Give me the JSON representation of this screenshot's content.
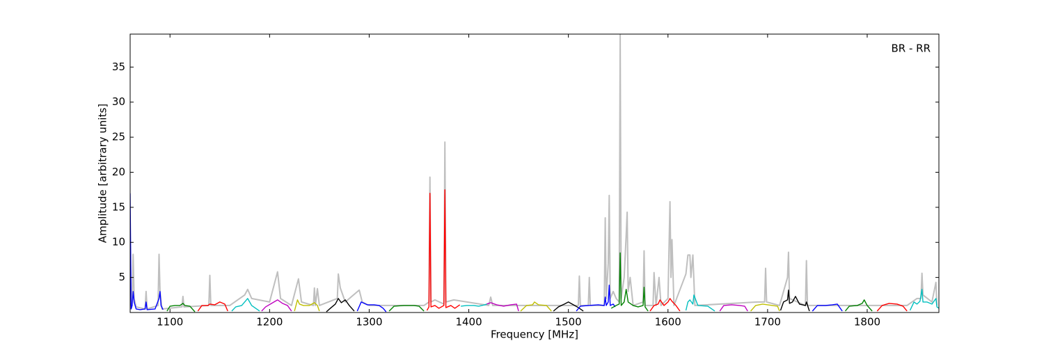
{
  "chart_data": {
    "type": "line",
    "annotation": "BR - RR",
    "xlabel": "Frequency [MHz]",
    "ylabel": "Amplitude [arbitrary units]",
    "xlim": [
      1060,
      1872
    ],
    "ylim": [
      0,
      39.7
    ],
    "xticks": [
      1100,
      1200,
      1300,
      1400,
      1500,
      1600,
      1700,
      1800
    ],
    "yticks": [
      5,
      10,
      15,
      20,
      25,
      30,
      35
    ],
    "series": [
      {
        "color": "#bfbfbf",
        "x": [
          1060,
          1062,
          1063,
          1064,
          1066,
          1075,
          1076,
          1077,
          1088,
          1089,
          1090,
          1092,
          1112,
          1113,
          1114,
          1139,
          1140,
          1141,
          1160,
          1175,
          1178,
          1182,
          1200,
          1208,
          1211,
          1222,
          1229,
          1232,
          1244,
          1245,
          1246,
          1248,
          1250,
          1268,
          1269,
          1271,
          1276,
          1290,
          1293,
          1300,
          1355,
          1360,
          1361,
          1362,
          1366,
          1375,
          1376,
          1377,
          1385,
          1420,
          1422,
          1424,
          1505,
          1510,
          1511,
          1512,
          1520,
          1521,
          1522,
          1536,
          1537,
          1538,
          1540,
          1541,
          1542,
          1545,
          1548,
          1551,
          1552,
          1553,
          1556,
          1558,
          1559,
          1560,
          1562,
          1565,
          1575,
          1576,
          1577,
          1585,
          1586,
          1588,
          1591,
          1593,
          1600,
          1601,
          1602,
          1603,
          1604,
          1606,
          1618,
          1620,
          1622,
          1623,
          1625,
          1627,
          1690,
          1697,
          1698,
          1699,
          1712,
          1714,
          1720,
          1721,
          1722,
          1730,
          1738,
          1739,
          1740,
          1840,
          1850,
          1854,
          1855,
          1856,
          1865,
          1869,
          1870
        ],
        "values": [
          1,
          1.5,
          8.3,
          2,
          0.8,
          0.5,
          3,
          0.5,
          1,
          8.3,
          3,
          0.5,
          0.8,
          2.3,
          0.8,
          1,
          5.3,
          1,
          1,
          2.5,
          3.3,
          2,
          1.5,
          5.8,
          2,
          1,
          4.8,
          1.5,
          1,
          3.5,
          1,
          3.4,
          1,
          2,
          5.5,
          3.5,
          1.5,
          3.2,
          1.5,
          1,
          1,
          1.5,
          19.3,
          1.5,
          1.8,
          1.2,
          24.3,
          1.5,
          1.8,
          1,
          2.2,
          1,
          1,
          1,
          5.2,
          1,
          1,
          5,
          1,
          1,
          13.5,
          2,
          7,
          16.7,
          2,
          3,
          2,
          1.5,
          39.7,
          2,
          5,
          11,
          14.3,
          3,
          5,
          1,
          1.5,
          8.8,
          1,
          1,
          5.7,
          1,
          5,
          1,
          2,
          9,
          15.8,
          5,
          10.4,
          1,
          5.5,
          8.2,
          8.2,
          5,
          8.2,
          1,
          1.5,
          1.5,
          6.3,
          1.5,
          1,
          2,
          5,
          8.6,
          2,
          1.5,
          1,
          7.4,
          1,
          1,
          2,
          2,
          5.6,
          2.5,
          1.5,
          4.3,
          1
        ]
      },
      {
        "color": "#0000ff",
        "x": [
          1060,
          1061,
          1062,
          1063,
          1064,
          1066,
          1070,
          1075,
          1076,
          1077,
          1085,
          1089,
          1090,
          1091,
          1093
        ],
        "values": [
          17,
          0.5,
          1,
          3,
          1.5,
          0.5,
          0.4,
          0.5,
          1.5,
          0.4,
          0.5,
          2,
          3,
          1,
          0.4
        ]
      },
      {
        "color": "#008000",
        "x": [
          1097,
          1100,
          1105,
          1110,
          1113,
          1115,
          1120,
          1125
        ],
        "values": [
          0.2,
          0.9,
          1,
          1,
          1.3,
          1,
          0.9,
          0.1
        ]
      },
      {
        "color": "#ff0000",
        "x": [
          1128,
          1132,
          1138,
          1140,
          1145,
          1150,
          1155,
          1158
        ],
        "values": [
          0.2,
          1,
          1,
          1.2,
          1.1,
          1.5,
          1.2,
          0.2
        ]
      },
      {
        "color": "#00bfbf",
        "x": [
          1162,
          1166,
          1172,
          1178,
          1182,
          1186,
          1190
        ],
        "values": [
          0.2,
          0.8,
          1,
          2,
          1,
          0.6,
          0.2
        ]
      },
      {
        "color": "#bf00bf",
        "x": [
          1192,
          1196,
          1202,
          1208,
          1213,
          1218,
          1222
        ],
        "values": [
          0.2,
          0.8,
          1.3,
          1.8,
          1.3,
          1,
          0.2
        ]
      },
      {
        "color": "#bfbf00",
        "x": [
          1225,
          1228,
          1230,
          1234,
          1240,
          1245,
          1248,
          1250
        ],
        "values": [
          0.2,
          1.8,
          1.2,
          1,
          1,
          1.4,
          1,
          0.2
        ]
      },
      {
        "color": "#000000",
        "x": [
          1257,
          1261,
          1266,
          1269,
          1272,
          1276,
          1280,
          1285
        ],
        "values": [
          0.1,
          0.6,
          1.2,
          2,
          1.4,
          1.8,
          1,
          0.2
        ]
      },
      {
        "color": "#0000ff",
        "x": [
          1288,
          1292,
          1298,
          1305,
          1310,
          1314,
          1317
        ],
        "values": [
          0.2,
          1.5,
          1.1,
          1.1,
          1,
          0.6,
          0.1
        ]
      },
      {
        "color": "#008000",
        "x": [
          1320,
          1325,
          1335,
          1345,
          1350,
          1355
        ],
        "values": [
          0.2,
          0.9,
          1,
          1,
          0.9,
          0.2
        ]
      },
      {
        "color": "#ff0000",
        "x": [
          1358,
          1360,
          1361,
          1362,
          1366,
          1370,
          1375,
          1376,
          1377,
          1382,
          1386,
          1391
        ],
        "values": [
          0.3,
          0.8,
          17,
          0.8,
          1,
          0.6,
          1,
          17.5,
          0.7,
          1,
          0.6,
          1.1
        ]
      },
      {
        "color": "#00bfbf",
        "x": [
          1392,
          1398,
          1405,
          1410,
          1416,
          1420
        ],
        "values": [
          0.9,
          1,
          1,
          0.9,
          1.1,
          1.3
        ]
      },
      {
        "color": "#bf00bf",
        "x": [
          1418,
          1422,
          1428,
          1435,
          1442,
          1448,
          1450
        ],
        "values": [
          1.2,
          1.4,
          1.1,
          0.9,
          1.1,
          1.2,
          0.2
        ]
      },
      {
        "color": "#bfbf00",
        "x": [
          1452,
          1458,
          1464,
          1466,
          1470,
          1478,
          1483
        ],
        "values": [
          0.2,
          1,
          1.1,
          1.5,
          1.1,
          1,
          0.2
        ]
      },
      {
        "color": "#000000",
        "x": [
          1485,
          1490,
          1496,
          1500,
          1505,
          1510,
          1515
        ],
        "values": [
          0.2,
          0.8,
          1.2,
          1.5,
          1.1,
          0.7,
          0.2
        ]
      },
      {
        "color": "#0000ff",
        "x": [
          1508,
          1512,
          1520,
          1530,
          1536,
          1537,
          1538,
          1540,
          1541,
          1542,
          1545,
          1547
        ],
        "values": [
          0.2,
          0.9,
          1,
          1.1,
          1,
          2.2,
          1,
          1.5,
          3.9,
          1,
          1.2,
          0.8
        ]
      },
      {
        "color": "#008000",
        "x": [
          1543,
          1548,
          1551,
          1552,
          1553,
          1556,
          1558,
          1560,
          1565,
          1570,
          1575,
          1576,
          1577,
          1580
        ],
        "values": [
          0.6,
          1,
          1.2,
          8.5,
          1,
          1.5,
          3.3,
          1.5,
          1,
          0.8,
          1,
          3.6,
          0.8,
          0.2
        ]
      },
      {
        "color": "#ff0000",
        "x": [
          1582,
          1586,
          1590,
          1592,
          1596,
          1600,
          1602,
          1604,
          1608,
          1612
        ],
        "values": [
          0.2,
          1,
          1.2,
          1.8,
          1,
          1.5,
          2,
          1.6,
          1,
          0.2
        ]
      },
      {
        "color": "#00bfbf",
        "x": [
          1618,
          1620,
          1622,
          1625,
          1626,
          1630,
          1640,
          1647
        ],
        "values": [
          0.3,
          1.5,
          1.8,
          1.2,
          2.5,
          1,
          0.9,
          0.2
        ]
      },
      {
        "color": "#bf00bf",
        "x": [
          1652,
          1656,
          1664,
          1672,
          1677,
          1680
        ],
        "values": [
          0.2,
          1,
          1.1,
          1,
          0.9,
          0.2
        ]
      },
      {
        "color": "#bfbf00",
        "x": [
          1683,
          1688,
          1695,
          1700,
          1705,
          1710,
          1712
        ],
        "values": [
          0.2,
          1,
          1.2,
          1.1,
          1,
          0.9,
          0.2
        ]
      },
      {
        "color": "#000000",
        "x": [
          1713,
          1716,
          1720,
          1721,
          1722,
          1725,
          1728,
          1732,
          1738,
          1739,
          1742
        ],
        "values": [
          0.3,
          1.5,
          1.8,
          3.2,
          1.3,
          1.5,
          2.3,
          1.2,
          1,
          1.5,
          0.2
        ]
      },
      {
        "color": "#0000ff",
        "x": [
          1745,
          1750,
          1758,
          1765,
          1770,
          1775
        ],
        "values": [
          0.2,
          1,
          1,
          1.1,
          1.2,
          0.2
        ]
      },
      {
        "color": "#008000",
        "x": [
          1778,
          1782,
          1790,
          1795,
          1797,
          1800,
          1805
        ],
        "values": [
          0.2,
          0.9,
          1,
          1.3,
          1.8,
          1,
          0.2
        ]
      },
      {
        "color": "#ff0000",
        "x": [
          1810,
          1815,
          1822,
          1830,
          1836,
          1840
        ],
        "values": [
          0.2,
          1,
          1.3,
          1.2,
          0.9,
          0.2
        ]
      },
      {
        "color": "#00bfbf",
        "x": [
          1843,
          1847,
          1850,
          1853,
          1855,
          1856,
          1860,
          1865,
          1869,
          1870,
          1872
        ],
        "values": [
          0.3,
          1.5,
          1.2,
          1.6,
          3.3,
          1.5,
          1.5,
          1.2,
          2,
          0.8,
          0.6
        ]
      }
    ]
  }
}
